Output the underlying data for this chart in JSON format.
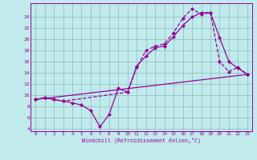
{
  "title": "",
  "xlabel": "Windchill (Refroidissement éolien,°C)",
  "background_color": "#c0eaec",
  "line_color": "#990099",
  "grid_color": "#88bbbb",
  "xlim_min": -0.5,
  "xlim_max": 23.5,
  "ylim_min": 3.5,
  "ylim_max": 26.5,
  "yticks": [
    4,
    6,
    8,
    10,
    12,
    14,
    16,
    18,
    20,
    22,
    24
  ],
  "xticks": [
    0,
    1,
    2,
    3,
    4,
    5,
    6,
    7,
    8,
    9,
    10,
    11,
    12,
    13,
    14,
    15,
    16,
    17,
    18,
    19,
    20,
    21,
    22,
    23
  ],
  "line1_x": [
    0,
    1,
    2,
    3,
    4,
    5,
    6,
    7,
    8,
    9,
    10,
    11,
    12,
    13,
    14,
    15,
    16,
    17,
    18,
    19,
    20,
    21,
    22,
    23
  ],
  "line1_y": [
    9.2,
    9.5,
    9.2,
    8.9,
    8.6,
    8.2,
    7.2,
    4.3,
    6.5,
    11.2,
    10.5,
    15.2,
    17.0,
    18.5,
    18.8,
    20.5,
    22.5,
    24.0,
    24.8,
    24.8,
    20.3,
    16.0,
    14.8,
    13.7
  ],
  "line2_x": [
    0,
    1,
    2,
    3,
    10,
    11,
    12,
    13,
    14,
    15,
    16,
    17,
    18,
    19,
    20,
    21,
    22,
    23
  ],
  "line2_y": [
    9.2,
    9.5,
    9.2,
    8.9,
    10.5,
    15.0,
    18.0,
    18.8,
    19.2,
    21.2,
    23.8,
    25.5,
    24.5,
    24.8,
    16.0,
    14.2,
    15.0,
    13.7
  ],
  "line3_x": [
    0,
    23
  ],
  "line3_y": [
    9.2,
    13.7
  ]
}
